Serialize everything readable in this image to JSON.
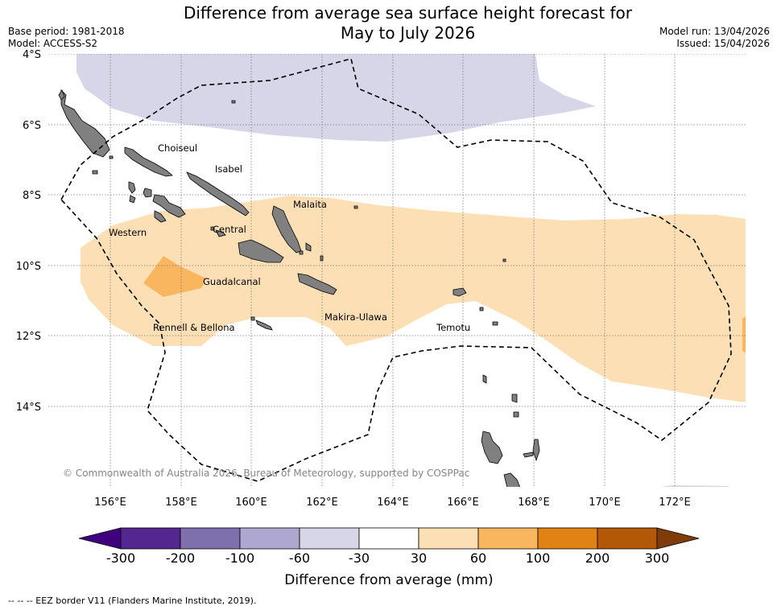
{
  "title": {
    "line1": "Difference from average sea surface height forecast for",
    "line2": "May to July 2026"
  },
  "meta": {
    "base_period": "Base period: 1981-2018",
    "model": "Model: ACCESS-S2",
    "model_run": "Model run: 13/04/2026",
    "issued": "Issued: 15/04/2026"
  },
  "map": {
    "lat_labels": [
      "4°S",
      "6°S",
      "8°S",
      "10°S",
      "12°S",
      "14°S"
    ],
    "lon_labels": [
      "156°E",
      "158°E",
      "160°E",
      "162°E",
      "164°E",
      "166°E",
      "168°E",
      "170°E",
      "172°E"
    ],
    "regions": [
      {
        "name": "Choiseul"
      },
      {
        "name": "Isabel"
      },
      {
        "name": "Malaita"
      },
      {
        "name": "Western"
      },
      {
        "name": "Central"
      },
      {
        "name": "Guadalcanal"
      },
      {
        "name": "Makira-Ulawa"
      },
      {
        "name": "Rennell & Bellona"
      },
      {
        "name": "Temotu"
      }
    ],
    "copyright": "© Commonwealth of Australia 2026, Bureau of Meteorology, supported by COSPPac",
    "colors": {
      "land": "#808080",
      "ocean": "#ffffff",
      "negative_band": "#d6d6e8",
      "positive_band": "#fddfb5",
      "positive_strong": "#f9b65f"
    }
  },
  "colorbar": {
    "labels": [
      "-300",
      "-200",
      "-100",
      "-60",
      "-30",
      "30",
      "60",
      "100",
      "200",
      "300"
    ],
    "colors": [
      "#3f007d",
      "#54278f",
      "#7e6fad",
      "#aea8d1",
      "#d6d6e8",
      "#ffffff",
      "#fddfb5",
      "#f9b65f",
      "#e08214",
      "#b35806",
      "#7f3b08"
    ],
    "label": "Difference from average (mm)"
  },
  "eez_note": "--  --  -- EEZ border V11 (Flanders Marine Institute, 2019)."
}
